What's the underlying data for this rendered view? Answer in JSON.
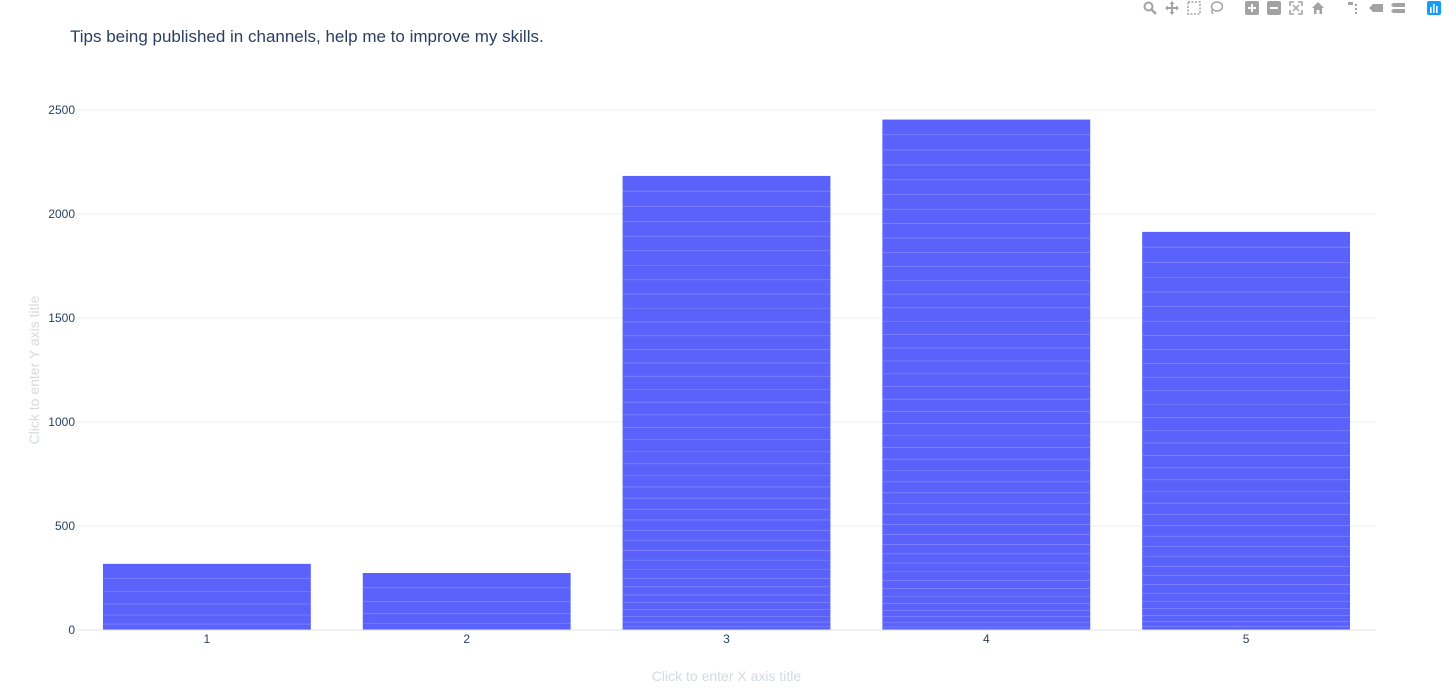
{
  "chart_data": {
    "type": "bar",
    "title": "Tips being published in channels, help me to improve my skills.",
    "xlabel": "Click to enter X axis title",
    "ylabel": "Click to enter Y axis title",
    "categories": [
      "1",
      "2",
      "3",
      "4",
      "5"
    ],
    "values": [
      318,
      274,
      2183,
      2454,
      1914
    ],
    "ylim": [
      0,
      2500
    ],
    "yticks": [
      0,
      500,
      1000,
      1500,
      2000,
      2500
    ],
    "ytick_labels": [
      "0",
      "500",
      "1000",
      "1500",
      "2000",
      "2500"
    ],
    "grid": true,
    "legend": "none",
    "bar_color": "#5a62fb",
    "grid_color": "#e9ecf2"
  },
  "modebar": {
    "icons": [
      "zoom-icon",
      "pan-icon",
      "box-select-icon",
      "lasso-select-icon",
      "zoom-in-icon",
      "zoom-out-icon",
      "autoscale-icon",
      "reset-axes-icon",
      "spike-lines-icon",
      "hover-closest-icon",
      "hover-compare-icon",
      "plotly-logo-icon"
    ]
  }
}
